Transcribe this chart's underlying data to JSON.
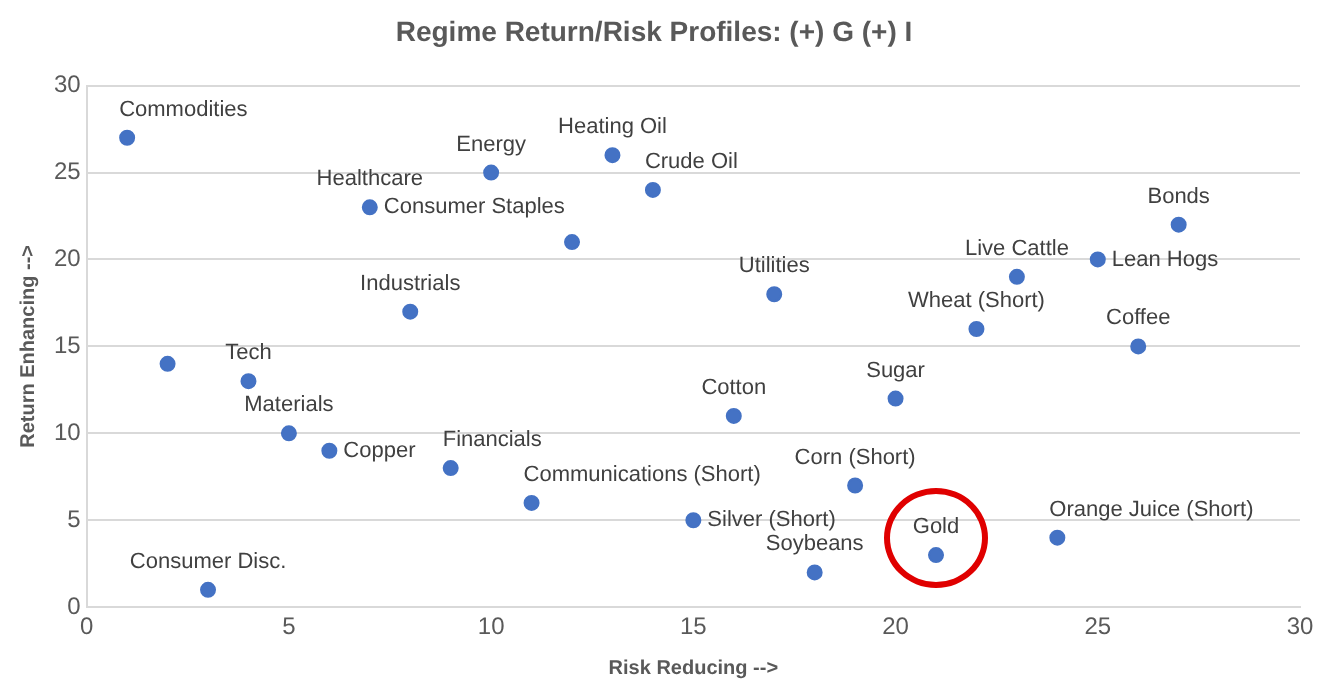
{
  "chart_data": {
    "type": "scatter",
    "title": "Regime Return/Risk Profiles: (+) G (+) I",
    "xlabel": "Risk Reducing -->",
    "ylabel": "Return Enhancing -->",
    "series": [
      {
        "color": "#4472c4",
        "x": [
          1,
          10,
          13,
          14,
          7,
          12,
          8,
          2,
          4,
          5,
          6,
          9,
          11,
          3,
          16,
          17,
          15,
          18,
          19,
          20,
          21,
          22,
          23,
          25,
          27,
          26,
          24
        ],
        "values": [
          27,
          25,
          26,
          24,
          23,
          21,
          17,
          14,
          13,
          10,
          9,
          8,
          6,
          1,
          11,
          18,
          5,
          2,
          7,
          12,
          3,
          16,
          19,
          20,
          22,
          15,
          4
        ]
      }
    ],
    "annotations": [
      {
        "text": "Commodities",
        "x": 1,
        "y": 27
      },
      {
        "text": "Energy",
        "x": 10,
        "y": 25
      },
      {
        "text": "Heating Oil",
        "x": 13,
        "y": 26
      },
      {
        "text": "Crude Oil",
        "x": 14,
        "y": 24
      },
      {
        "text": "Healthcare",
        "x": 7,
        "y": 23
      },
      {
        "text": "Consumer Staples",
        "x": 7,
        "y": 23
      },
      {
        "text": "Industrials",
        "x": 8,
        "y": 17
      },
      {
        "text": "Tech",
        "x": 4,
        "y": 13
      },
      {
        "text": "Materials",
        "x": 5,
        "y": 10
      },
      {
        "text": "Copper",
        "x": 6,
        "y": 9
      },
      {
        "text": "Financials",
        "x": 9,
        "y": 8
      },
      {
        "text": "Communications (Short)",
        "x": 11,
        "y": 6
      },
      {
        "text": "Consumer Disc.",
        "x": 3,
        "y": 1
      },
      {
        "text": "Cotton",
        "x": 16,
        "y": 11
      },
      {
        "text": "Utilities",
        "x": 17,
        "y": 18
      },
      {
        "text": "Silver (Short)",
        "x": 15,
        "y": 5
      },
      {
        "text": "Soybeans",
        "x": 18,
        "y": 2
      },
      {
        "text": "Corn (Short)",
        "x": 19,
        "y": 7
      },
      {
        "text": "Sugar",
        "x": 20,
        "y": 12
      },
      {
        "text": "Gold",
        "x": 21,
        "y": 3
      },
      {
        "text": "Wheat (Short)",
        "x": 22,
        "y": 16
      },
      {
        "text": "Live Cattle",
        "x": 23,
        "y": 19
      },
      {
        "text": "Lean Hogs",
        "x": 25,
        "y": 20
      },
      {
        "text": "Bonds",
        "x": 27,
        "y": 22
      },
      {
        "text": "Coffee",
        "x": 26,
        "y": 15
      },
      {
        "text": "Orange Juice (Short)",
        "x": 24,
        "y": 4
      }
    ],
    "xlim": [
      0,
      30
    ],
    "xticks": [
      0,
      5,
      10,
      15,
      20,
      25,
      30
    ],
    "ylim": [
      0,
      30
    ],
    "yticks": [
      0,
      5,
      10,
      15,
      20,
      25,
      30
    ],
    "grid": "y",
    "marker": "circle",
    "legend": false
  }
}
